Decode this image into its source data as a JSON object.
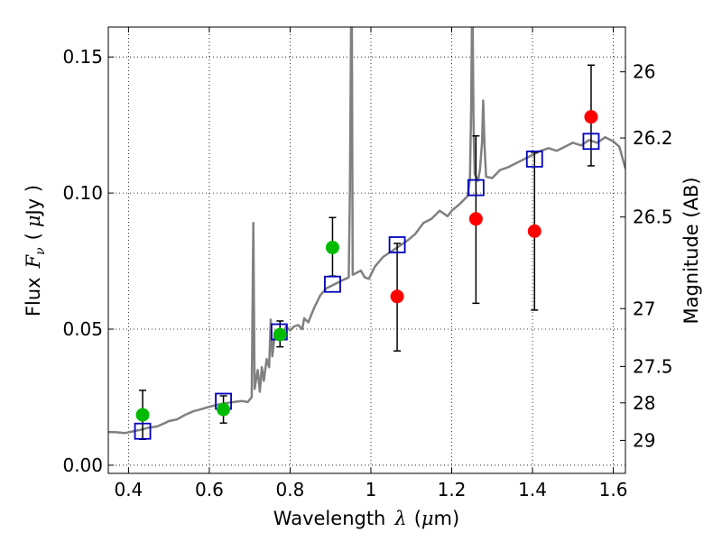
{
  "chart_data": {
    "type": "scatter",
    "xlabel_text": "Wavelength",
    "xlabel_symbol": "λ",
    "xlabel_unit_open": "(",
    "xlabel_unit_mu": "μ",
    "xlabel_unit_rest": "m)",
    "ylabel_text": "Flux",
    "ylabel_symbol": "F",
    "ylabel_sub": "ν",
    "ylabel_unit_open": "(",
    "ylabel_unit_mu": "μ",
    "ylabel_unit_rest": "Jy )",
    "y2label": "Magnitude (AB)",
    "xlim": [
      0.35,
      1.63
    ],
    "ylim": [
      -0.003,
      0.161
    ],
    "grid": true,
    "x_ticks": [
      {
        "value": 0.4,
        "label": "0.4"
      },
      {
        "value": 0.6,
        "label": "0.6"
      },
      {
        "value": 0.8,
        "label": "0.8"
      },
      {
        "value": 1.0,
        "label": "1"
      },
      {
        "value": 1.2,
        "label": "1.2"
      },
      {
        "value": 1.4,
        "label": "1.4"
      },
      {
        "value": 1.6,
        "label": "1.6"
      }
    ],
    "y_ticks": [
      {
        "value": 0.0,
        "label": "0.00"
      },
      {
        "value": 0.05,
        "label": "0.05"
      },
      {
        "value": 0.1,
        "label": "0.10"
      },
      {
        "value": 0.15,
        "label": "0.15"
      }
    ],
    "mag_ticks": [
      {
        "mag": 26,
        "label": "26"
      },
      {
        "mag": 26.2,
        "label": "26.2"
      },
      {
        "mag": 26.5,
        "label": "26.5"
      },
      {
        "mag": 27,
        "label": "27"
      },
      {
        "mag": 27.5,
        "label": "27.5"
      },
      {
        "mag": 28,
        "label": "28"
      },
      {
        "mag": 29,
        "label": "29"
      }
    ],
    "model_points": [
      {
        "x": 0.435,
        "y": 0.0125
      },
      {
        "x": 0.635,
        "y": 0.0235
      },
      {
        "x": 0.773,
        "y": 0.049
      },
      {
        "x": 0.905,
        "y": 0.0665
      },
      {
        "x": 1.065,
        "y": 0.081
      },
      {
        "x": 1.26,
        "y": 0.102
      },
      {
        "x": 1.405,
        "y": 0.1125
      },
      {
        "x": 1.545,
        "y": 0.119
      }
    ],
    "observed_points": [
      {
        "x": 0.435,
        "y": 0.0185,
        "err_hi": 0.0275,
        "err_lo": 0.0095,
        "color": "green"
      },
      {
        "x": 0.635,
        "y": 0.0205,
        "err_hi": 0.0255,
        "err_lo": 0.0155,
        "color": "green"
      },
      {
        "x": 0.775,
        "y": 0.048,
        "err_hi": 0.053,
        "err_lo": 0.0435,
        "color": "green"
      },
      {
        "x": 0.905,
        "y": 0.08,
        "err_hi": 0.091,
        "err_lo": 0.0695,
        "color": "green"
      },
      {
        "x": 1.065,
        "y": 0.062,
        "err_hi": 0.0815,
        "err_lo": 0.042,
        "color": "red"
      },
      {
        "x": 1.26,
        "y": 0.0905,
        "err_hi": 0.121,
        "err_lo": 0.0595,
        "color": "red"
      },
      {
        "x": 1.405,
        "y": 0.086,
        "err_hi": 0.115,
        "err_lo": 0.057,
        "color": "red"
      },
      {
        "x": 1.545,
        "y": 0.128,
        "err_hi": 0.147,
        "err_lo": 0.11,
        "color": "red"
      }
    ],
    "spectrum": [
      [
        0.35,
        0.0122
      ],
      [
        0.37,
        0.0121
      ],
      [
        0.39,
        0.0118
      ],
      [
        0.41,
        0.0124
      ],
      [
        0.43,
        0.013
      ],
      [
        0.45,
        0.0138
      ],
      [
        0.47,
        0.0142
      ],
      [
        0.49,
        0.0155
      ],
      [
        0.5,
        0.0162
      ],
      [
        0.52,
        0.0168
      ],
      [
        0.54,
        0.0185
      ],
      [
        0.56,
        0.0198
      ],
      [
        0.58,
        0.0206
      ],
      [
        0.6,
        0.0215
      ],
      [
        0.62,
        0.0222
      ],
      [
        0.64,
        0.0228
      ],
      [
        0.66,
        0.0232
      ],
      [
        0.68,
        0.0236
      ],
      [
        0.695,
        0.0232
      ],
      [
        0.705,
        0.025
      ],
      [
        0.709,
        0.089
      ],
      [
        0.712,
        0.028
      ],
      [
        0.72,
        0.035
      ],
      [
        0.725,
        0.027
      ],
      [
        0.73,
        0.036
      ],
      [
        0.735,
        0.031
      ],
      [
        0.742,
        0.039
      ],
      [
        0.748,
        0.036
      ],
      [
        0.752,
        0.0535
      ],
      [
        0.756,
        0.04
      ],
      [
        0.762,
        0.048
      ],
      [
        0.77,
        0.049
      ],
      [
        0.78,
        0.0475
      ],
      [
        0.79,
        0.051
      ],
      [
        0.8,
        0.0495
      ],
      [
        0.81,
        0.051
      ],
      [
        0.82,
        0.0515
      ],
      [
        0.83,
        0.05
      ],
      [
        0.835,
        0.054
      ],
      [
        0.845,
        0.0525
      ],
      [
        0.86,
        0.058
      ],
      [
        0.875,
        0.0625
      ],
      [
        0.89,
        0.065
      ],
      [
        0.91,
        0.0665
      ],
      [
        0.93,
        0.068
      ],
      [
        0.945,
        0.069
      ],
      [
        0.948,
        0.1
      ],
      [
        0.951,
        0.161
      ],
      [
        0.953,
        0.161
      ],
      [
        0.955,
        0.07
      ],
      [
        0.962,
        0.0705
      ],
      [
        0.975,
        0.0715
      ],
      [
        0.985,
        0.069
      ],
      [
        0.995,
        0.0685
      ],
      [
        1.01,
        0.073
      ],
      [
        1.03,
        0.0765
      ],
      [
        1.05,
        0.0785
      ],
      [
        1.07,
        0.0805
      ],
      [
        1.09,
        0.0825
      ],
      [
        1.11,
        0.085
      ],
      [
        1.13,
        0.089
      ],
      [
        1.15,
        0.0905
      ],
      [
        1.17,
        0.0935
      ],
      [
        1.19,
        0.0915
      ],
      [
        1.2,
        0.0935
      ],
      [
        1.22,
        0.096
      ],
      [
        1.24,
        0.099
      ],
      [
        1.245,
        0.105
      ],
      [
        1.248,
        0.13
      ],
      [
        1.25,
        0.161
      ],
      [
        1.252,
        0.161
      ],
      [
        1.254,
        0.125
      ],
      [
        1.257,
        0.107
      ],
      [
        1.265,
        0.1045
      ],
      [
        1.27,
        0.1085
      ],
      [
        1.275,
        0.1185
      ],
      [
        1.278,
        0.134
      ],
      [
        1.281,
        0.118
      ],
      [
        1.285,
        0.106
      ],
      [
        1.3,
        0.1055
      ],
      [
        1.32,
        0.1085
      ],
      [
        1.34,
        0.1095
      ],
      [
        1.36,
        0.111
      ],
      [
        1.38,
        0.1125
      ],
      [
        1.4,
        0.114
      ],
      [
        1.42,
        0.1155
      ],
      [
        1.44,
        0.1165
      ],
      [
        1.46,
        0.1155
      ],
      [
        1.48,
        0.117
      ],
      [
        1.5,
        0.1185
      ],
      [
        1.52,
        0.1175
      ],
      [
        1.54,
        0.1195
      ],
      [
        1.56,
        0.1185
      ],
      [
        1.58,
        0.1205
      ],
      [
        1.6,
        0.119
      ],
      [
        1.615,
        0.117
      ],
      [
        1.63,
        0.109
      ]
    ],
    "colors": {
      "spectrum": "#808080",
      "model_square": "#0000bb",
      "green": "#00bb00",
      "red": "#ff0000",
      "errorbar": "#000000",
      "grid": "#000000"
    }
  }
}
